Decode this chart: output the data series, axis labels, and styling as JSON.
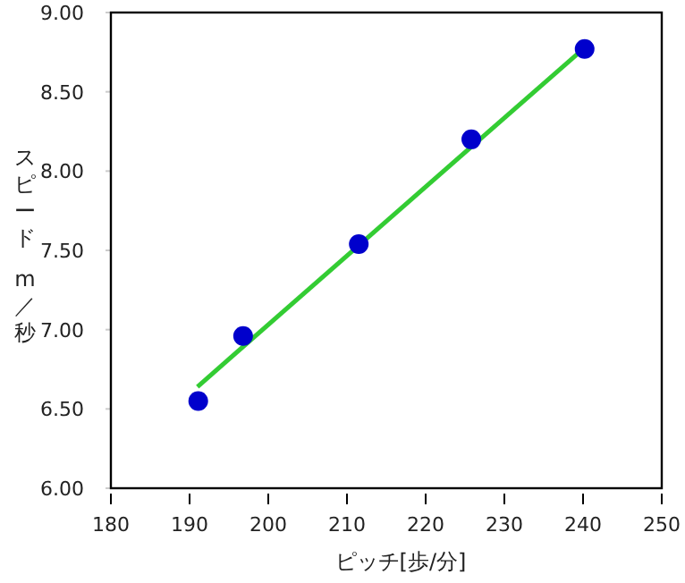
{
  "chart_data": {
    "type": "scatter",
    "xlabel": "ピッチ[歩/分]",
    "ylabel": "スピード m／秒",
    "x": [
      191.1,
      196.8,
      211.5,
      225.8,
      240.2
    ],
    "series": [
      {
        "type": "scatter",
        "color": "#0000cc",
        "values": [
          6.55,
          6.96,
          7.54,
          8.2,
          8.77
        ],
        "marker": "circle"
      },
      {
        "type": "line",
        "color": "#33cc33",
        "x": [
          191,
          240
        ],
        "values": [
          6.64,
          8.77
        ],
        "marker": "none",
        "line_style": "solid"
      }
    ],
    "xlim": [
      180,
      250
    ],
    "xticks": [
      180,
      190,
      200,
      210,
      220,
      230,
      240,
      250
    ],
    "ylim": [
      6,
      9
    ],
    "yticks": [
      {
        "value": 6,
        "label": "6.00"
      },
      {
        "value": 6.5,
        "label": "6.50"
      },
      {
        "value": 7,
        "label": "7.00"
      },
      {
        "value": 7.5,
        "label": "7.50"
      },
      {
        "value": 8,
        "label": "8.00"
      },
      {
        "value": 8.5,
        "label": "8.50"
      },
      {
        "value": 9,
        "label": "9.00"
      }
    ],
    "grid": false
  }
}
